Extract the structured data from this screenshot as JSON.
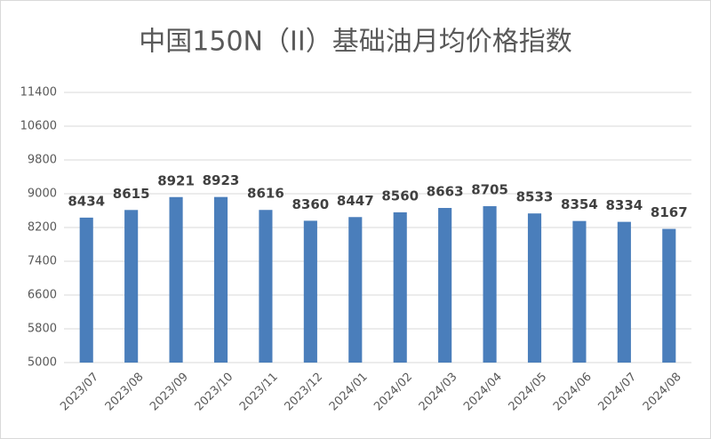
{
  "chart_data": {
    "type": "bar",
    "title": "中国150N（II）基础油月均价格指数",
    "categories": [
      "2023/07",
      "2023/08",
      "2023/09",
      "2023/10",
      "2023/11",
      "2023/12",
      "2024/01",
      "2024/02",
      "2024/03",
      "2024/04",
      "2024/05",
      "2024/06",
      "2024/07",
      "2024/08"
    ],
    "values": [
      8434,
      8615,
      8921,
      8923,
      8616,
      8360,
      8447,
      8560,
      8663,
      8705,
      8533,
      8354,
      8334,
      8167
    ],
    "color": "#4a7ebb",
    "ylim": [
      5000,
      11400
    ],
    "yticks": [
      5000,
      5800,
      6600,
      7400,
      8200,
      9000,
      9800,
      10600,
      11400
    ],
    "grid": true
  }
}
